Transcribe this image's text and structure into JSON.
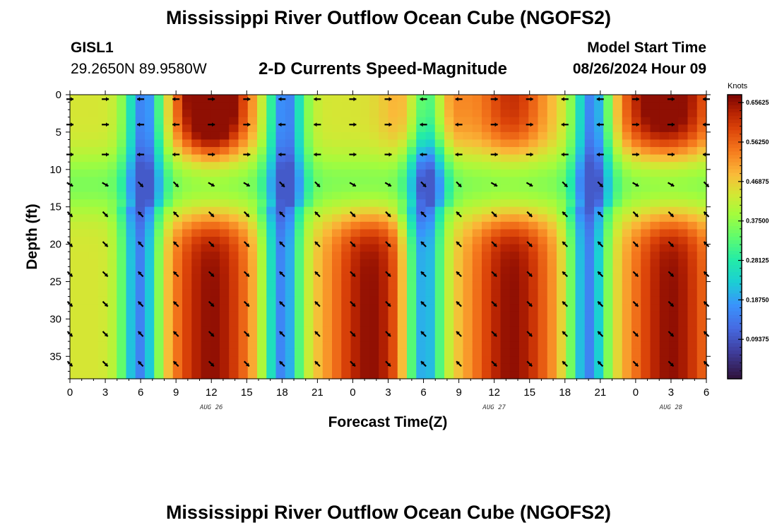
{
  "page": {
    "title": "Mississippi River Outflow Ocean Cube (NGOFS2)",
    "footer_title": "Mississippi River Outflow Ocean Cube (NGOFS2)",
    "station_id": "GISL1",
    "station_coords": "29.2650N  89.9580W",
    "subtitle": "2-D Currents Speed-Magnitude",
    "model_start_label": "Model Start Time",
    "model_start_value": "08/26/2024 Hour 09"
  },
  "chart_data": {
    "type": "heatmap",
    "title": "2-D Currents Speed-Magnitude",
    "xlabel": "Forecast Time(Z)",
    "ylabel": "Depth (ft)",
    "x_tick_labels": [
      "0",
      "3",
      "6",
      "9",
      "12",
      "15",
      "18",
      "21",
      "0",
      "3",
      "6",
      "9",
      "12",
      "15",
      "18",
      "21",
      "0",
      "3",
      "6"
    ],
    "x_range_hours": [
      0,
      54
    ],
    "date_labels": [
      {
        "text": "AUG 26",
        "hour": 12
      },
      {
        "text": "AUG 27",
        "hour": 36
      },
      {
        "text": "AUG 28",
        "hour": 51
      }
    ],
    "y_ticks": [
      0,
      5,
      10,
      15,
      20,
      25,
      30,
      35
    ],
    "ylim": [
      0,
      38
    ],
    "y_inverted": true,
    "colorbar": {
      "unit": "Knots",
      "min": 0.0,
      "max": 0.675,
      "tick_values": [
        0.09375,
        0.1875,
        0.28125,
        0.375,
        0.46875,
        0.5625,
        0.65625
      ],
      "tick_labels": [
        "0.09375",
        "0.18750",
        "0.28125",
        "0.37500",
        "0.46875",
        "0.56250",
        "0.65625"
      ],
      "colormap": "turbo"
    },
    "grid": false,
    "arrow_hours": [
      0,
      3,
      6,
      9,
      12,
      15,
      18,
      21,
      24,
      27,
      30,
      33,
      36,
      39,
      42,
      45,
      48,
      51,
      54
    ],
    "arrow_depths": [
      0,
      4,
      8,
      12,
      16,
      20,
      24,
      28,
      32,
      36
    ],
    "speed_estimates_knots": {
      "strong_deep_ebb_hours": [
        12,
        25.5,
        37.5,
        51
      ],
      "slack_hours": [
        6,
        18,
        30,
        44
      ],
      "peak_speed": 0.65,
      "slack_speed": 0.14
    }
  }
}
